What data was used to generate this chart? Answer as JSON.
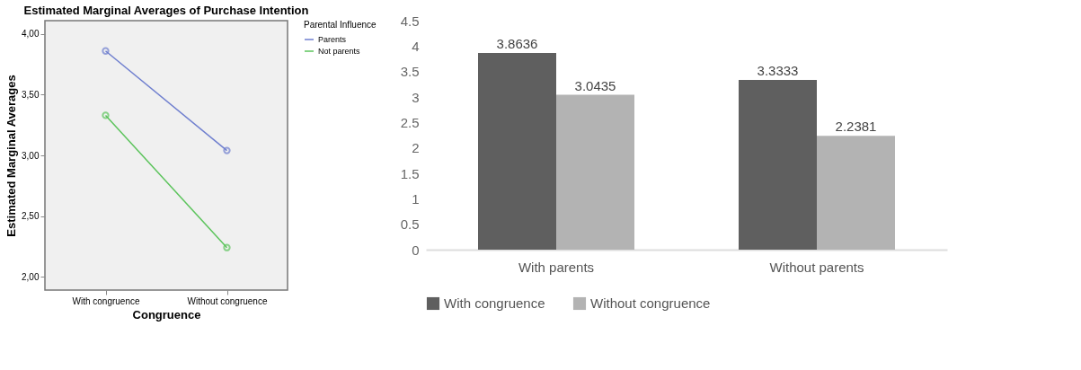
{
  "chart_data": [
    {
      "type": "line",
      "title": "Estimated Marginal Averages of Purchase Intention",
      "xlabel": "Congruence",
      "ylabel": "Estimated Marginal Averages",
      "legend_title": "Parental Influence",
      "legend": "right",
      "marker": "circle",
      "grid": false,
      "categories": [
        "With congruence",
        "Without congruence"
      ],
      "series": [
        {
          "name": "Parents",
          "color": "#6f7fcf",
          "values": [
            3.86,
            3.04
          ]
        },
        {
          "name": "Not parents",
          "color": "#5cc45c",
          "values": [
            3.33,
            2.24
          ]
        }
      ],
      "ylim": [
        1.89,
        4.11
      ],
      "yticks": [
        {
          "value": 2,
          "label": "2,00"
        },
        {
          "value": 2.5,
          "label": "2,50"
        },
        {
          "value": 3,
          "label": "3,00"
        },
        {
          "value": 3.5,
          "label": "3,50"
        },
        {
          "value": 4,
          "label": "4,00"
        }
      ]
    },
    {
      "type": "bar",
      "legend": "bottom",
      "data_labels": true,
      "grid": false,
      "categories": [
        "With parents",
        "Without parents"
      ],
      "series": [
        {
          "name": "With congruence",
          "color": "#5f5f5f",
          "values": [
            3.8636,
            3.3333
          ]
        },
        {
          "name": "Without congruence",
          "color": "#b3b3b3",
          "values": [
            3.0435,
            2.2381
          ]
        }
      ],
      "ylim": [
        0,
        4.5
      ],
      "yticks": [
        0,
        0.5,
        1,
        1.5,
        2,
        2.5,
        3,
        3.5,
        4,
        4.5
      ]
    }
  ]
}
